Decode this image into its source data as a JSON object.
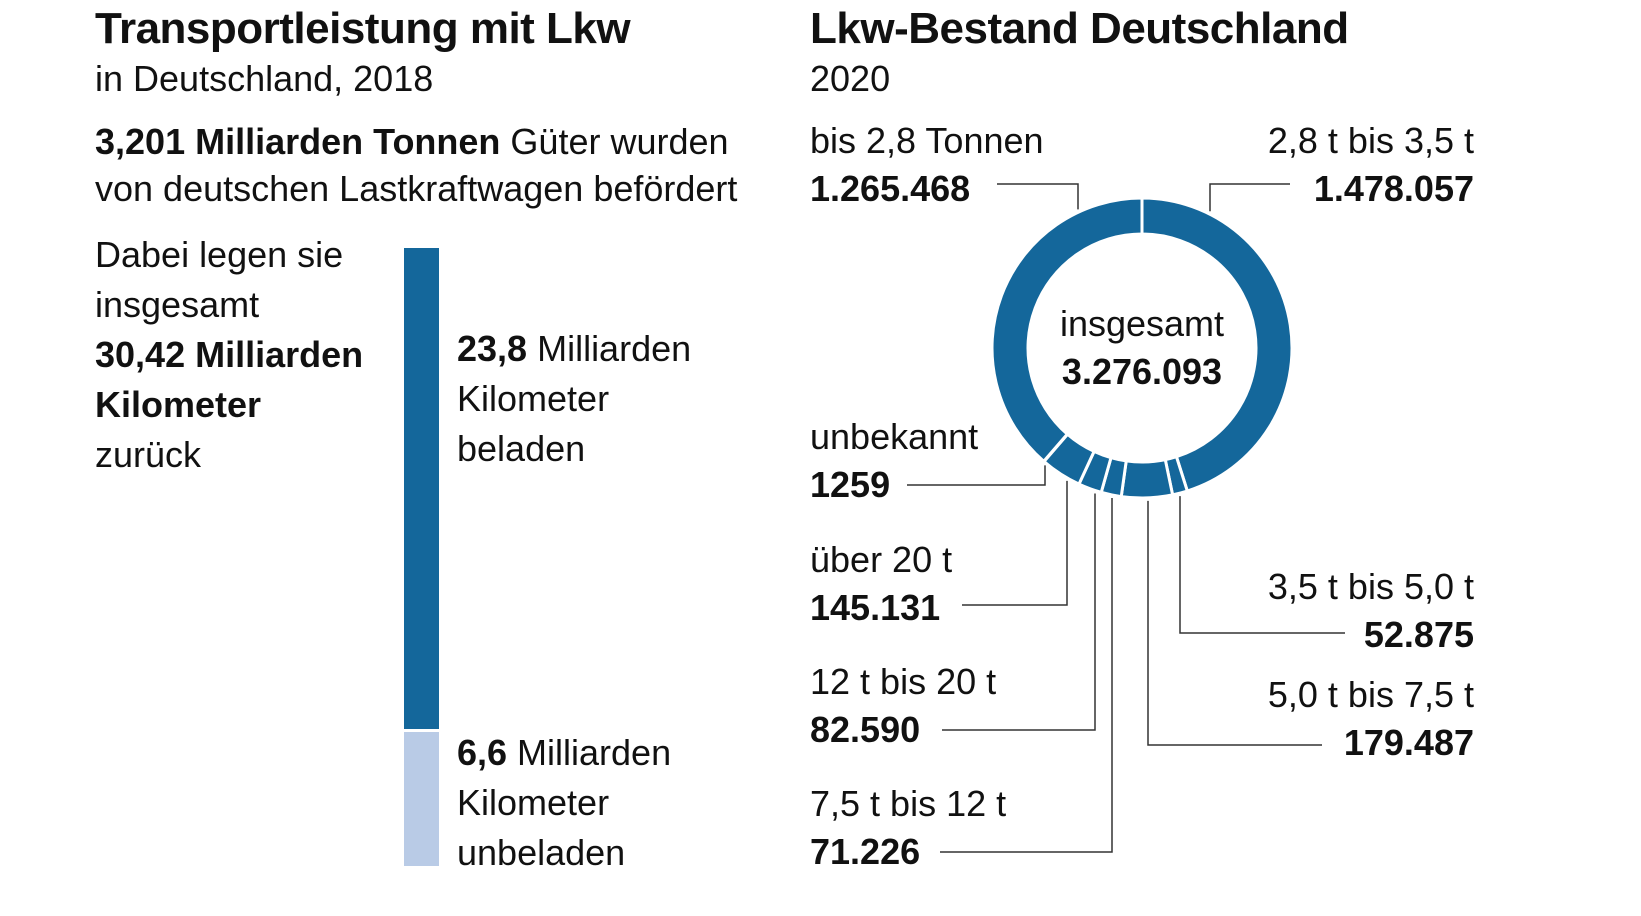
{
  "left": {
    "title": "Transportleistung mit Lkw",
    "subtitle": "in Deutschland, 2018",
    "goods_bold": "3,201 Milliarden Tonnen",
    "goods_rest": " Güter wurden",
    "goods_line2": "von deutschen Lastkraftwagen befördert",
    "intro_line1": "Dabei legen sie",
    "intro_line2": "insgesamt",
    "total_bold_1": "30,42 Milliarden",
    "total_bold_2": "Kilometer",
    "total_after": "zurück",
    "loaded_value": "23,8",
    "loaded_unit": " Milliarden",
    "loaded_line2": "Kilometer",
    "loaded_line3": "beladen",
    "empty_value": "6,6",
    "empty_unit": " Milliarden",
    "empty_line2": "Kilometer",
    "empty_line3": "unbeladen"
  },
  "right": {
    "title": "Lkw-Bestand Deutschland",
    "subtitle": "2020",
    "center_label": "insgesamt",
    "center_value": "3.276.093"
  },
  "colors": {
    "dark_blue": "#14679b",
    "light_blue": "#b9cbe6",
    "leader": "#333333"
  },
  "chart_data": [
    {
      "type": "bar",
      "categories": [
        "beladen",
        "unbeladen"
      ],
      "series": [
        {
          "values": [
            23.8,
            6.6
          ]
        }
      ],
      "stacked": true
    },
    {
      "type": "pie",
      "donut": true,
      "categories": [
        "bis 2,8 Tonnen",
        "2,8 t bis 3,5 t",
        "3,5 t bis 5,0 t",
        "5,0 t bis 7,5 t",
        "7,5 t bis 12 t",
        "12 t bis 20 t",
        "über 20 t",
        "unbekannt"
      ],
      "display_values": [
        "1.265.468",
        "1.478.057",
        "52.875",
        "179.487",
        "71.226",
        "82.590",
        "145.131",
        "1259"
      ],
      "values": [
        1265468,
        1478057,
        52875,
        179487,
        71226,
        82590,
        145131,
        1259
      ],
      "total": 3276093
    }
  ]
}
